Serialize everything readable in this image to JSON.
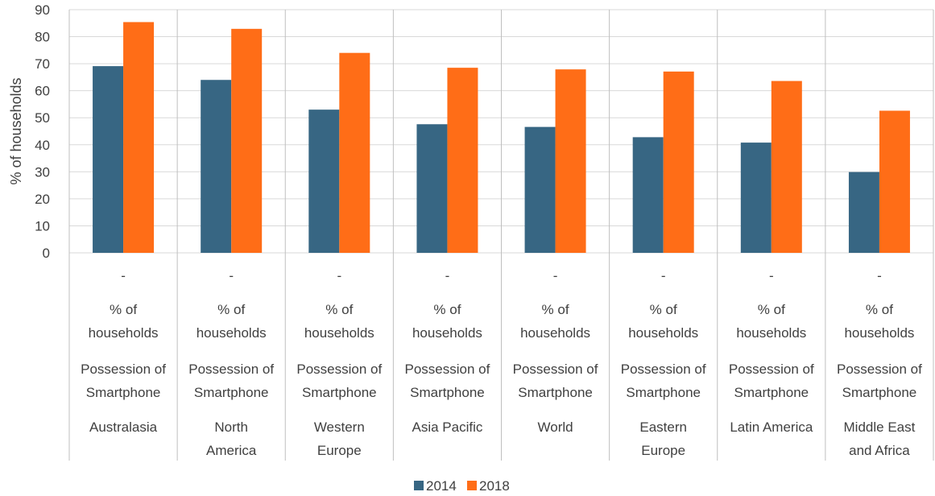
{
  "chart_data": {
    "type": "bar",
    "ylabel": "% of households",
    "ylim": [
      0,
      90
    ],
    "yticks": [
      0,
      10,
      20,
      30,
      40,
      50,
      60,
      70,
      80,
      90
    ],
    "grid": true,
    "legend_position": "bottom",
    "category_levels": {
      "row1": "-",
      "row2": [
        "% of",
        "households"
      ],
      "row3": [
        "Possession of",
        "Smartphone"
      ]
    },
    "categories": [
      [
        "Australasia"
      ],
      [
        "North",
        "America"
      ],
      [
        "Western",
        "Europe"
      ],
      [
        "Asia Pacific"
      ],
      [
        "World"
      ],
      [
        "Eastern",
        "Europe"
      ],
      [
        "Latin America"
      ],
      [
        "Middle East",
        "and Africa"
      ]
    ],
    "series": [
      {
        "name": "2014",
        "color": "#376683",
        "values": [
          69.1,
          64.0,
          53.0,
          47.6,
          46.6,
          42.8,
          40.8,
          29.9
        ]
      },
      {
        "name": "2018",
        "color": "#ff6d17",
        "values": [
          85.4,
          82.9,
          74.0,
          68.5,
          67.9,
          67.1,
          63.6,
          52.6
        ]
      }
    ]
  }
}
